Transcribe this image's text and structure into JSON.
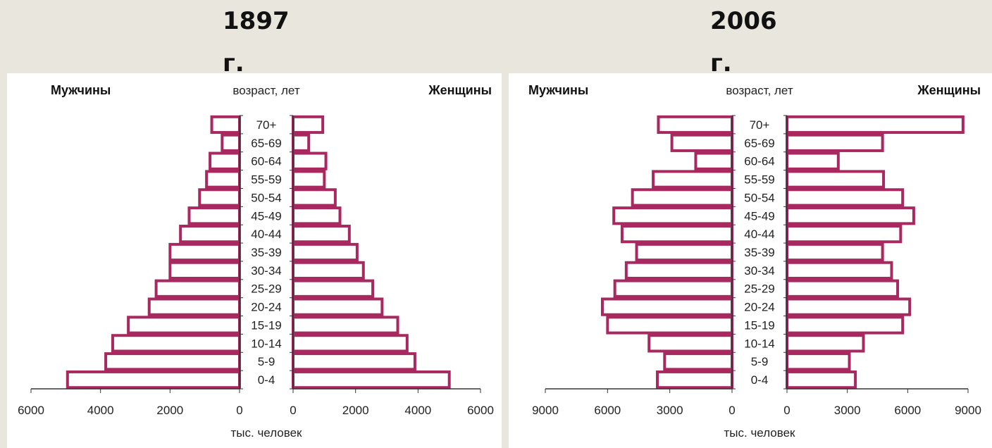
{
  "years": {
    "left_line1": "1897",
    "left_line2": "г.",
    "right_line1": "2006",
    "right_line2": "г."
  },
  "colors": {
    "bar_stroke": "#a8295f",
    "bar_fill": "#ffffff",
    "axis": "#333333"
  },
  "chart_data": [
    {
      "type": "bar",
      "orientation": "horizontal-pyramid",
      "header_men": "Мужчины",
      "header_women": "Женщины",
      "age_label": "возраст, лет",
      "xlabel": "тыс. человек",
      "xlim": [
        0,
        6000
      ],
      "ticks_left": [
        "6000",
        "4000",
        "2000",
        "0"
      ],
      "ticks_right": [
        "0",
        "2000",
        "4000",
        "6000"
      ],
      "categories": [
        "0-4",
        "5-9",
        "10-14",
        "15-19",
        "20-24",
        "25-29",
        "30-34",
        "35-39",
        "40-44",
        "45-49",
        "50-54",
        "55-59",
        "60-64",
        "65-69",
        "70+"
      ],
      "series": [
        {
          "name": "Мужчины",
          "values": [
            4950,
            3850,
            3650,
            3200,
            2600,
            2400,
            2000,
            2000,
            1700,
            1450,
            1150,
            950,
            850,
            500,
            800
          ]
        },
        {
          "name": "Женщины",
          "values": [
            5000,
            3900,
            3650,
            3350,
            2850,
            2550,
            2250,
            2050,
            1800,
            1500,
            1350,
            1000,
            1050,
            500,
            950
          ]
        }
      ]
    },
    {
      "type": "bar",
      "orientation": "horizontal-pyramid",
      "header_men": "Мужчины",
      "header_women": "Женщины",
      "age_label": "возраст, лет",
      "xlabel": "тыс. человек",
      "xlim": [
        0,
        9000
      ],
      "ticks_left": [
        "9000",
        "6000",
        "3000",
        "0"
      ],
      "ticks_right": [
        "0",
        "3000",
        "6000",
        "9000"
      ],
      "categories": [
        "0-4",
        "5-9",
        "10-14",
        "15-19",
        "20-24",
        "25-29",
        "30-34",
        "35-39",
        "40-44",
        "45-49",
        "50-54",
        "55-59",
        "60-64",
        "65-69",
        "70+"
      ],
      "series": [
        {
          "name": "Мужчины",
          "values": [
            3600,
            3250,
            4000,
            6000,
            6250,
            5650,
            5100,
            4600,
            5300,
            5700,
            4800,
            3800,
            1750,
            2900,
            3550
          ]
        },
        {
          "name": "Женщины",
          "values": [
            3400,
            3100,
            3800,
            5750,
            6100,
            5500,
            5200,
            4750,
            5650,
            6300,
            5750,
            4800,
            2550,
            4750,
            8750
          ]
        }
      ]
    }
  ]
}
